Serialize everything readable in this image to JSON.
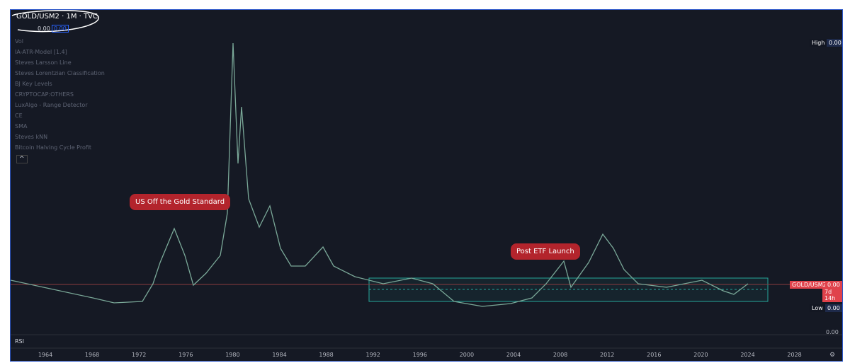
{
  "header": {
    "symbol": "GOLD/USM2 · 1M · TVC",
    "values": [
      "0.00",
      "0.00"
    ]
  },
  "indicators": [
    "Vol",
    "IA-ATR-Model [1.4]",
    "Steves Larsson Line",
    "Steves Lorentzian Classification",
    "BJ Key Levels",
    "CRYPTOCAP:OTHERS",
    "LuxAlgo - Range Detector",
    "CE",
    "SMA",
    "Steves kNN",
    "Bitcoin Halving Cycle Profit"
  ],
  "annotations": [
    "US Off the Gold Standard",
    "Post ETF Launch"
  ],
  "price_scale": {
    "high_label": "High",
    "high_value": "0.00",
    "symbol": "GOLD/USM2",
    "last": "0.00",
    "countdown": "7d 14h",
    "low_label": "Low",
    "low_value": "0.00",
    "bottom": "0.00"
  },
  "rsi_label": "RSI",
  "time_axis": [
    "1964",
    "1968",
    "1972",
    "1976",
    "1980",
    "1984",
    "1988",
    "1992",
    "1996",
    "2000",
    "2004",
    "2008",
    "2012",
    "2016",
    "2020",
    "2024",
    "2028"
  ]
}
